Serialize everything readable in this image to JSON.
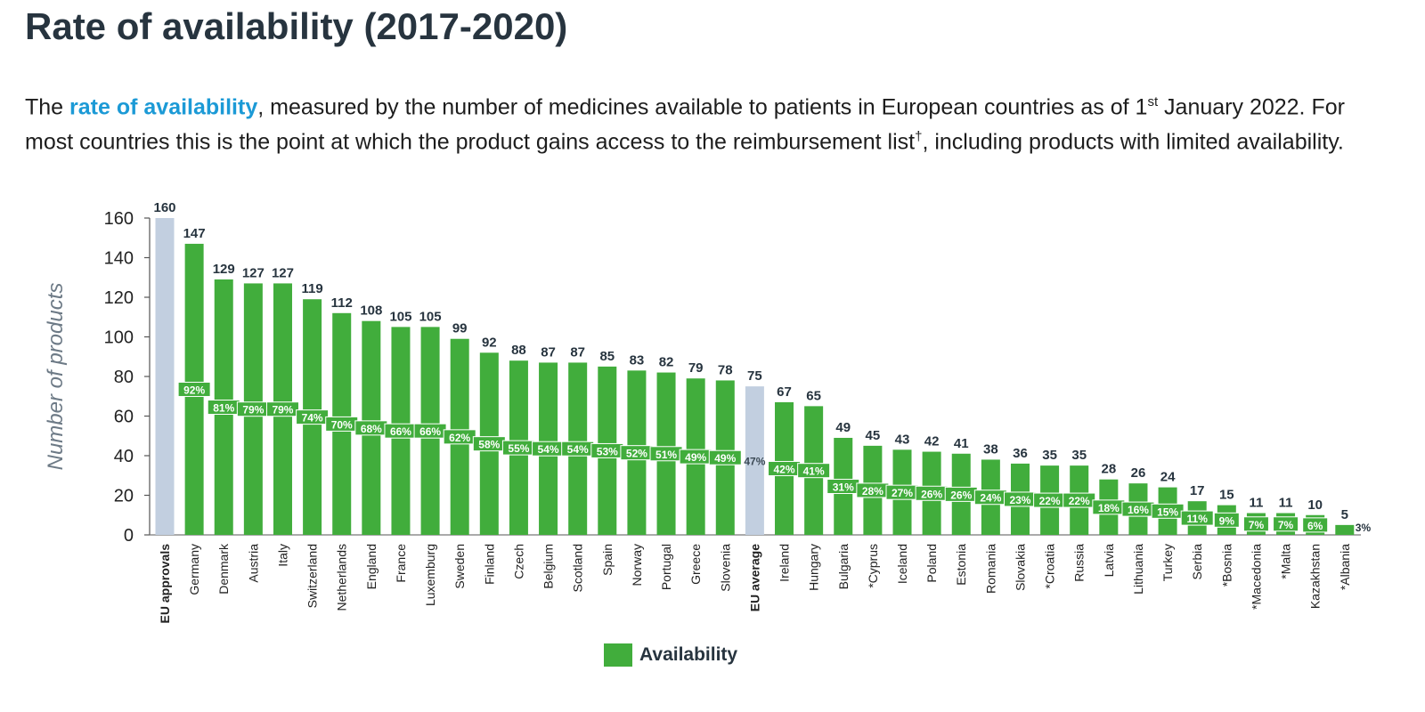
{
  "title": "Rate of availability (2017-2020)",
  "subtitle": {
    "pre": "The ",
    "highlight": "rate of availability",
    "post1": ", measured by the number of medicines available to patients in European countries as of 1",
    "sup1": "st",
    "post2": " January 2022. For most countries this is the point at which the product gains access to the reimbursement list",
    "sup2": "†",
    "post3": ", including products with limited availability."
  },
  "chart_data": {
    "type": "bar",
    "ylabel": "Number of products",
    "ylim": [
      0,
      160
    ],
    "yticks": [
      0,
      20,
      40,
      60,
      80,
      100,
      120,
      140,
      160
    ],
    "grid": false,
    "legend": {
      "position": "bottom",
      "entries": [
        "Availability"
      ]
    },
    "colors": {
      "availability": "#41ad3c",
      "reference": "#c2cfe0"
    },
    "categories": [
      "EU approvals",
      "Germany",
      "Denmark",
      "Austria",
      "Italy",
      "Switzerland",
      "Netherlands",
      "England",
      "France",
      "Luxemburg",
      "Sweden",
      "Finland",
      "Czech",
      "Belgium",
      "Scotland",
      "Spain",
      "Norway",
      "Portugal",
      "Greece",
      "Slovenia",
      "EU average",
      "Ireland",
      "Hungary",
      "Bulgaria",
      "*Cyprus",
      "Iceland",
      "Poland",
      "Estonia",
      "Romania",
      "Slovakia",
      "*Croatia",
      "Russia",
      "Latvia",
      "Lithuania",
      "Turkey",
      "Serbia",
      "*Bosnia",
      "*Macedonia",
      "*Malta",
      "Kazakhstan",
      "*Albania"
    ],
    "reference_categories": [
      "EU approvals",
      "EU average"
    ],
    "series": [
      {
        "name": "Availability",
        "values": [
          160,
          147,
          129,
          127,
          127,
          119,
          112,
          108,
          105,
          105,
          99,
          92,
          88,
          87,
          87,
          85,
          83,
          82,
          79,
          78,
          75,
          67,
          65,
          49,
          45,
          43,
          42,
          41,
          38,
          36,
          35,
          35,
          28,
          26,
          24,
          17,
          15,
          11,
          11,
          10,
          5
        ],
        "percent_labels": [
          null,
          "92%",
          "81%",
          "79%",
          "79%",
          "74%",
          "70%",
          "68%",
          "66%",
          "66%",
          "62%",
          "58%",
          "55%",
          "54%",
          "54%",
          "53%",
          "52%",
          "51%",
          "49%",
          "49%",
          "47%",
          "42%",
          "41%",
          "31%",
          "28%",
          "27%",
          "26%",
          "26%",
          "24%",
          "23%",
          "22%",
          "22%",
          "18%",
          "16%",
          "15%",
          "11%",
          "9%",
          "7%",
          "7%",
          "6%",
          "3%"
        ]
      }
    ]
  }
}
